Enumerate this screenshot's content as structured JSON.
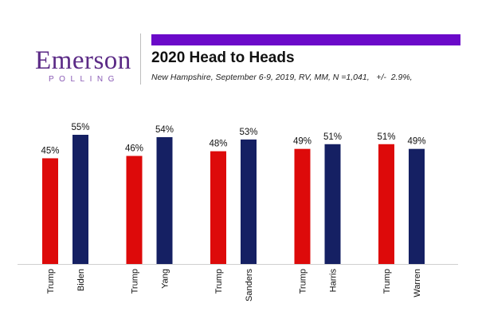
{
  "brand": {
    "wordmark": "Emerson",
    "sub": "POLLING",
    "purple": "#5b2a86",
    "accent_bar_color": "#6b0ac9"
  },
  "chart_data": {
    "type": "bar",
    "title": "2020 Head to Heads",
    "subtitle": "New Hampshire, September 6-9, 2019, RV, MM, N =1,041,   +/-  2.9%,",
    "value_format": "percent",
    "ylim": [
      0,
      60
    ],
    "grid": false,
    "colors": {
      "Trump": "#dd0a0a",
      "Democrat": "#152063"
    },
    "groups": [
      {
        "bars": [
          {
            "label": "Trump",
            "value": 45,
            "party": "Trump"
          },
          {
            "label": "Biden",
            "value": 55,
            "party": "Democrat"
          }
        ]
      },
      {
        "bars": [
          {
            "label": "Trump",
            "value": 46,
            "party": "Trump"
          },
          {
            "label": "Yang",
            "value": 54,
            "party": "Democrat"
          }
        ]
      },
      {
        "bars": [
          {
            "label": "Trump",
            "value": 48,
            "party": "Trump"
          },
          {
            "label": "Sanders",
            "value": 53,
            "party": "Democrat"
          }
        ]
      },
      {
        "bars": [
          {
            "label": "Trump",
            "value": 49,
            "party": "Trump"
          },
          {
            "label": "Harris",
            "value": 51,
            "party": "Democrat"
          }
        ]
      },
      {
        "bars": [
          {
            "label": "Trump",
            "value": 51,
            "party": "Trump"
          },
          {
            "label": "Warren",
            "value": 49,
            "party": "Democrat"
          }
        ]
      }
    ]
  }
}
